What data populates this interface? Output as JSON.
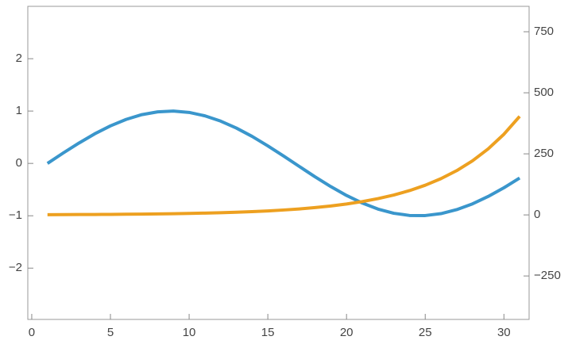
{
  "chart_data": {
    "type": "line",
    "x": [
      1,
      2,
      3,
      4,
      5,
      6,
      7,
      8,
      9,
      10,
      11,
      12,
      13,
      14,
      15,
      16,
      17,
      18,
      19,
      20,
      21,
      22,
      23,
      24,
      25,
      26,
      27,
      28,
      29,
      30,
      31
    ],
    "series": [
      {
        "color": "#3a96cc",
        "values": [
          0,
          0.199,
          0.389,
          0.565,
          0.717,
          0.841,
          0.932,
          0.985,
          1.0,
          0.974,
          0.909,
          0.808,
          0.675,
          0.516,
          0.335,
          0.141,
          -0.058,
          -0.256,
          -0.443,
          -0.612,
          -0.757,
          -0.872,
          -0.952,
          -0.994,
          -0.996,
          -0.959,
          -0.883,
          -0.773,
          -0.631,
          -0.465,
          -0.279
        ]
      },
      {
        "color": "#eda020",
        "axis": "y2",
        "values": [
          1,
          1.22,
          1.49,
          1.82,
          2.23,
          2.72,
          3.32,
          4.06,
          4.95,
          6.05,
          7.39,
          9.03,
          11.0,
          13.5,
          16.4,
          20.1,
          24.5,
          30.0,
          36.6,
          44.7,
          54.6,
          66.7,
          81.5,
          99.5,
          121.5,
          148.4,
          181.3,
          221.4,
          270.4,
          330.3,
          403.4
        ]
      }
    ],
    "xlim": [
      -0.25,
      31.6
    ],
    "xticks": [
      0,
      5,
      10,
      15,
      20,
      25,
      30
    ],
    "ylim": [
      -2.98,
      3.0
    ],
    "yticks": [
      {
        "value": -2,
        "label": "−2"
      },
      {
        "value": -1,
        "label": "−1"
      },
      0,
      1,
      2
    ],
    "y2lim": [
      -428,
      854
    ],
    "y2ticks": [
      {
        "value": -250,
        "label": "−250"
      },
      0,
      250,
      500,
      750
    ]
  }
}
